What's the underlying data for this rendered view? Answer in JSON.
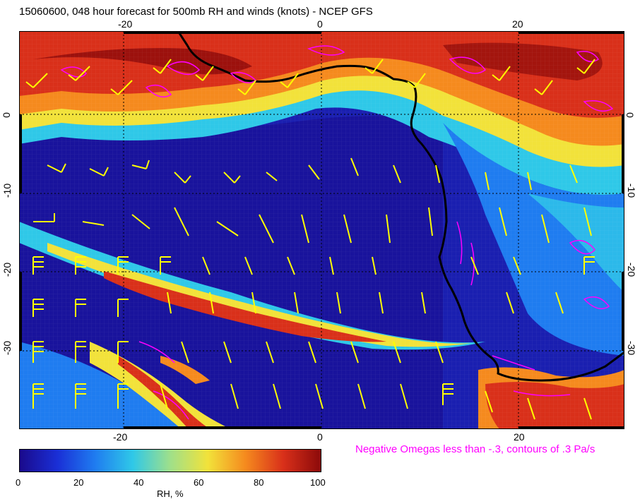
{
  "title": "15060600, 048 hour forecast for 500mb RH and winds (knots) - NCEP GFS",
  "top_ticks": [
    "-20",
    "0",
    "20"
  ],
  "bottom_ticks": [
    "-20",
    "0",
    "20"
  ],
  "left_ticks": [
    "0",
    "-10",
    "-20",
    "-30"
  ],
  "right_ticks": [
    "0",
    "-10",
    "-20",
    "-30"
  ],
  "omega_note": "Negative Omegas less than -.3, contours of .3 Pa/s",
  "colorbar": {
    "ticks": [
      "0",
      "20",
      "40",
      "60",
      "80",
      "100"
    ],
    "label": "RH, %",
    "colors": [
      "#1a0a8c",
      "#1a2fd6",
      "#1f7cf0",
      "#2fc8e8",
      "#9fe08a",
      "#f2e23a",
      "#f58a1e",
      "#d9301a",
      "#8c0a0a"
    ]
  },
  "colors": {
    "coastline": "#000000",
    "wind_barbs": "#ffff00",
    "omega_contours": "#ff00ff"
  }
}
